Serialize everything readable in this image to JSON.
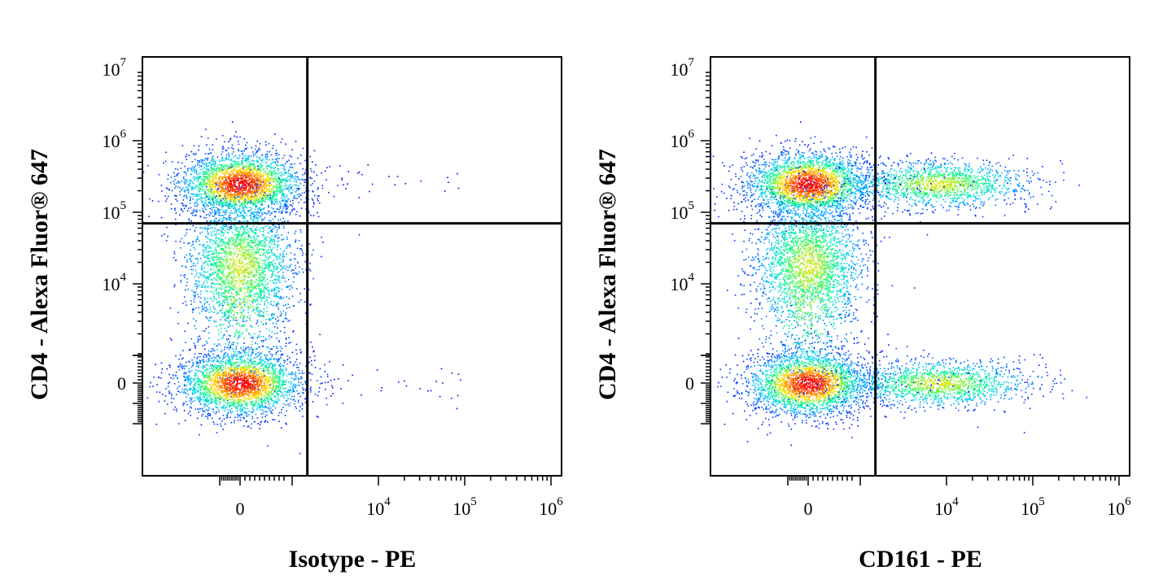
{
  "colors": {
    "density_low": "#0000ff",
    "density_mid": "#00c8ff",
    "density_high": "#ffe400",
    "density_max": "#ff0000",
    "gate": "#000000"
  },
  "chart_data": [
    {
      "type": "scatter",
      "title": "",
      "xlabel": "Isotype - PE",
      "ylabel": "CD4 - Alexa Fluor® 647",
      "x_scale": "biexponential",
      "y_scale": "biexponential",
      "x_ticks": [
        {
          "value": 0,
          "label": "0",
          "exp": ""
        },
        {
          "value": 10000,
          "label": "10",
          "exp": "4"
        },
        {
          "value": 100000,
          "label": "10",
          "exp": "5"
        },
        {
          "value": 1000000,
          "label": "10",
          "exp": "6"
        }
      ],
      "y_ticks": [
        {
          "value": 0,
          "label": "0",
          "exp": ""
        },
        {
          "value": 10000,
          "label": "10",
          "exp": "4"
        },
        {
          "value": 100000,
          "label": "10",
          "exp": "5"
        },
        {
          "value": 1000000,
          "label": "10",
          "exp": "6"
        },
        {
          "value": 10000000,
          "label": "10",
          "exp": "7"
        }
      ],
      "quadrant_gate": {
        "x": 1500,
        "y": 70000
      },
      "populations": [
        {
          "label": "CD4+ / PE-",
          "x_center": 0,
          "y_center": 250000,
          "relative_density": "high"
        },
        {
          "label": "CD4 intermediate / PE-",
          "x_center": 0,
          "y_center": 20000,
          "relative_density": "medium"
        },
        {
          "label": "CD4- / PE-",
          "x_center": 0,
          "y_center": 0,
          "relative_density": "high"
        }
      ]
    },
    {
      "type": "scatter",
      "title": "",
      "xlabel": "CD161 - PE",
      "ylabel": "CD4 - Alexa Fluor® 647",
      "x_scale": "biexponential",
      "y_scale": "biexponential",
      "x_ticks": [
        {
          "value": 0,
          "label": "0",
          "exp": ""
        },
        {
          "value": 10000,
          "label": "10",
          "exp": "4"
        },
        {
          "value": 100000,
          "label": "10",
          "exp": "5"
        },
        {
          "value": 1000000,
          "label": "10",
          "exp": "6"
        }
      ],
      "y_ticks": [
        {
          "value": 0,
          "label": "0",
          "exp": ""
        },
        {
          "value": 10000,
          "label": "10",
          "exp": "4"
        },
        {
          "value": 100000,
          "label": "10",
          "exp": "5"
        },
        {
          "value": 1000000,
          "label": "10",
          "exp": "6"
        },
        {
          "value": 10000000,
          "label": "10",
          "exp": "7"
        }
      ],
      "quadrant_gate": {
        "x": 1500,
        "y": 70000
      },
      "populations": [
        {
          "label": "CD4+ / CD161-",
          "x_center": 0,
          "y_center": 250000,
          "relative_density": "high"
        },
        {
          "label": "CD4+ / CD161+",
          "x_center": 8000,
          "y_center": 250000,
          "relative_density": "medium"
        },
        {
          "label": "CD4 intermediate / CD161-",
          "x_center": 0,
          "y_center": 20000,
          "relative_density": "medium"
        },
        {
          "label": "CD4- / CD161-",
          "x_center": 0,
          "y_center": 0,
          "relative_density": "high"
        },
        {
          "label": "CD4- / CD161+",
          "x_center": 8000,
          "y_center": 0,
          "relative_density": "medium"
        }
      ]
    }
  ]
}
